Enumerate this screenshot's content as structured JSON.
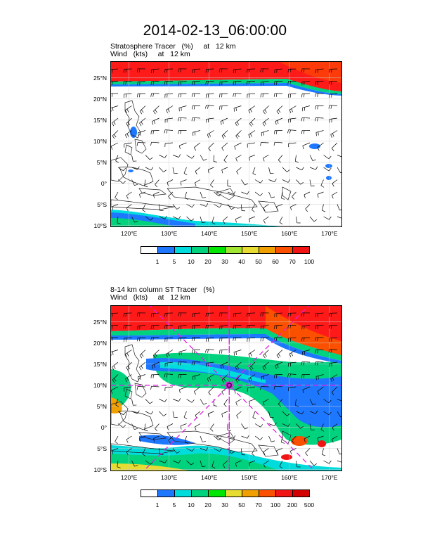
{
  "page_title": "2014-02-13_06:00:00",
  "panels": [
    {
      "title_line1": "Stratosphere Tracer   (%)     at   12 km",
      "title_line2": "Wind   (kts)     at   12 km",
      "color_labels": [
        "1",
        "5",
        "10",
        "20",
        "30",
        "40",
        "50",
        "60",
        "70",
        "100"
      ],
      "colors": [
        "#ffffff",
        "#1e78ff",
        "#00dcdc",
        "#00d27e",
        "#00e600",
        "#a0e632",
        "#e6dc32",
        "#f0a000",
        "#fa5000",
        "#f01414"
      ]
    },
    {
      "title_line1": "8-14 km column ST Tracer   (%)",
      "title_line2": "Wind   (kts)     at   12 km",
      "color_labels": [
        "1",
        "5",
        "10",
        "20",
        "30",
        "50",
        "70",
        "100",
        "200",
        "500"
      ],
      "colors": [
        "#ffffff",
        "#1e78ff",
        "#00dcdc",
        "#00d27e",
        "#00e600",
        "#e6dc32",
        "#f0a000",
        "#fa5000",
        "#f01414",
        "#d20000"
      ]
    }
  ],
  "lat_labels": [
    "25°N",
    "20°N",
    "15°N",
    "10°N",
    "5°N",
    "0°",
    "5°S",
    "10°S"
  ],
  "lon_labels": [
    "120°E",
    "130°E",
    "140°E",
    "150°E",
    "160°E",
    "170°E"
  ],
  "marker": {
    "lat": 10,
    "lon": 145,
    "color": "#e020e0"
  }
}
